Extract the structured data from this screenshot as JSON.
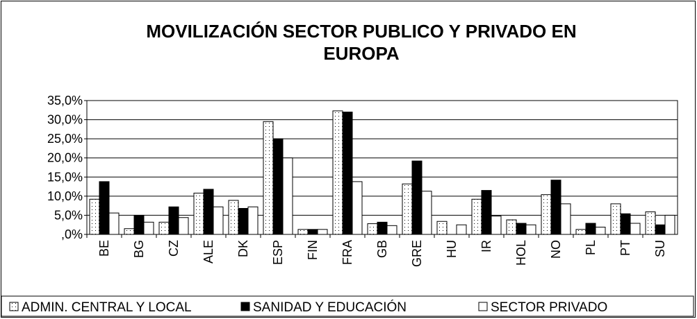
{
  "chart_data": {
    "type": "bar",
    "title": [
      "MOVILIZACIÓN SECTOR PUBLICO Y PRIVADO EN",
      "EUROPA"
    ],
    "categories": [
      "BE",
      "BG",
      "CZ",
      "ALE",
      "DK",
      "ESP",
      "FIN",
      "FRA",
      "GB",
      "GRE",
      "HU",
      "IR",
      "HOL",
      "NO",
      "PL",
      "PT",
      "SU"
    ],
    "series": [
      {
        "name": "ADMIN. CENTRAL Y LOCAL",
        "color": "#ffffff",
        "pattern": "dots",
        "values": [
          9.2,
          1.5,
          3.2,
          10.8,
          8.9,
          29.5,
          1.3,
          32.3,
          2.8,
          13.2,
          3.4,
          9.2,
          3.8,
          10.4,
          1.3,
          8.0,
          5.9
        ]
      },
      {
        "name": "SANIDAD Y EDUCACIÓN",
        "color": "#000000",
        "values": [
          13.8,
          5.0,
          7.2,
          11.8,
          6.8,
          25.0,
          1.3,
          32.0,
          3.2,
          19.2,
          0,
          11.5,
          2.9,
          14.2,
          2.9,
          5.4,
          2.5
        ]
      },
      {
        "name": "SECTOR PRIVADO",
        "color": "#ffffff",
        "values": [
          5.6,
          3.2,
          4.4,
          7.2,
          7.2,
          20.0,
          1.3,
          13.8,
          2.3,
          11.3,
          2.5,
          4.8,
          2.5,
          8.0,
          1.9,
          2.9,
          5.0
        ]
      }
    ],
    "ylim": [
      0,
      35
    ],
    "yticks": [
      {
        "value": 0,
        "label": ",0%"
      },
      {
        "value": 5,
        "label": "5,0%"
      },
      {
        "value": 10,
        "label": "10,0%"
      },
      {
        "value": 15,
        "label": "15,0%"
      },
      {
        "value": 20,
        "label": "20,0%"
      },
      {
        "value": 25,
        "label": "25,0%"
      },
      {
        "value": 30,
        "label": "30,0%"
      },
      {
        "value": 35,
        "label": "35,0%"
      }
    ],
    "grid": true,
    "legend": "bottom"
  }
}
